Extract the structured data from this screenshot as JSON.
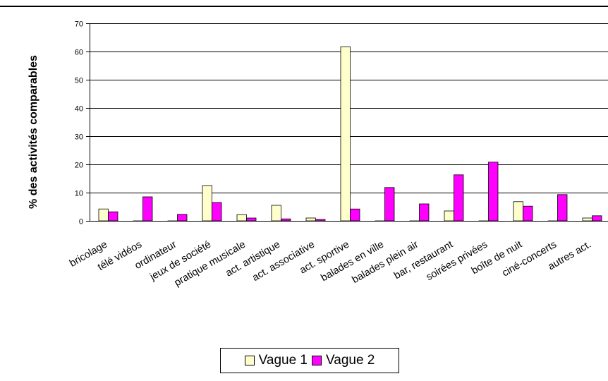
{
  "chart_data": {
    "type": "bar",
    "title": "",
    "xlabel": "",
    "ylabel": "% des activités comparables",
    "ylim": [
      0,
      70
    ],
    "yticks": [
      0,
      10,
      20,
      30,
      40,
      50,
      60,
      70
    ],
    "grid": true,
    "legend_position": "bottom",
    "categories": [
      "bricolage",
      "télé vidéos",
      "ordinateur",
      "jeux de société",
      "pratique musicale",
      "act. artistique",
      "act. associative",
      "act. sportive",
      "balades en ville",
      "balades plein air",
      "bar, restaurant",
      "soirées privées",
      "boîte de nuit",
      "ciné-concerts",
      "autres act."
    ],
    "series": [
      {
        "name": "Vague 1",
        "color": "#ffffcc",
        "values": [
          4.2,
          0,
          0,
          12.5,
          2.2,
          5.5,
          1.0,
          61.7,
          0,
          0,
          3.5,
          0,
          6.8,
          0,
          1.0
        ]
      },
      {
        "name": "Vague 2",
        "color": "#ff00ff",
        "values": [
          3.2,
          8.5,
          2.3,
          6.5,
          1.0,
          0.7,
          0.5,
          4.2,
          11.8,
          6.0,
          16.3,
          20.8,
          5.2,
          9.3,
          1.8
        ]
      }
    ]
  },
  "legend": {
    "items": [
      {
        "label": "Vague 1",
        "color": "#ffffcc"
      },
      {
        "label": "Vague 2",
        "color": "#ff00ff"
      }
    ]
  }
}
